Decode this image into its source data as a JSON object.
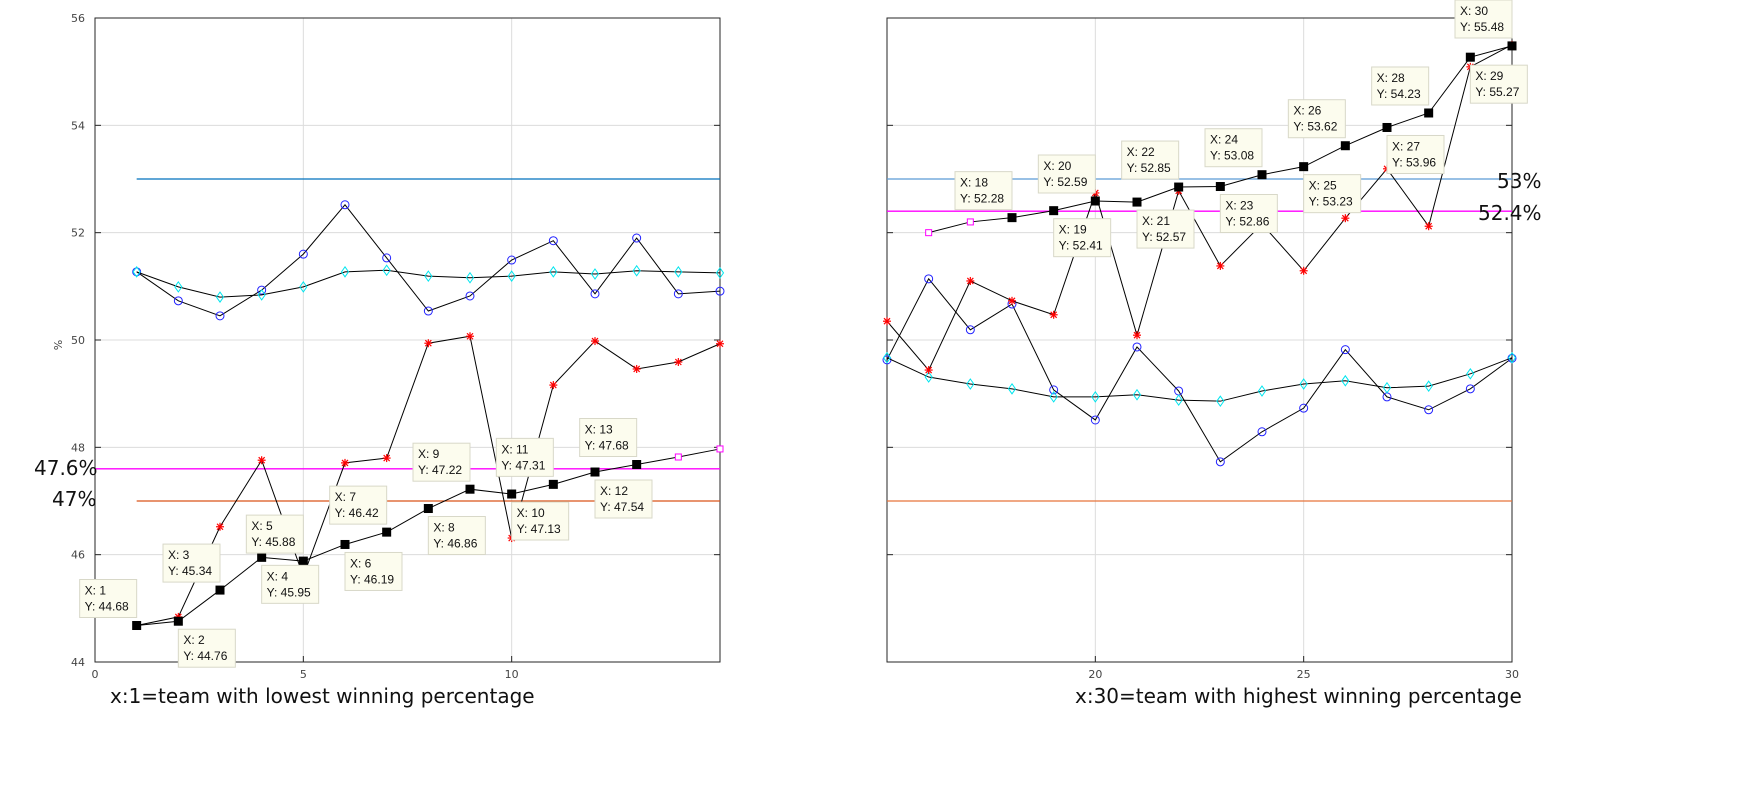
{
  "chart_data": [
    {
      "type": "line",
      "title": "",
      "xlabel": "",
      "ylabel": "%",
      "caption": "x:1=team with lowest winning percentage",
      "xlim": [
        0,
        15
      ],
      "ylim": [
        44,
        56
      ],
      "xticks": [
        0,
        5,
        10
      ],
      "yticks": [
        44,
        46,
        48,
        50,
        52,
        54,
        56
      ],
      "grid": true,
      "annotations": [
        "47.6%",
        "47%"
      ],
      "hlines": [
        {
          "y": 53,
          "from": 1,
          "to": 15,
          "color": "#0072bd"
        },
        {
          "y": 47.6,
          "from": 0,
          "to": 15,
          "color": "#ff00ff"
        },
        {
          "y": 47,
          "from": 1,
          "to": 15,
          "color": "#d95319"
        }
      ],
      "series": [
        {
          "name": "blue-circles",
          "marker": "circle",
          "color": "#2222ff",
          "x": [
            1,
            2,
            3,
            4,
            5,
            6,
            7,
            8,
            9,
            10,
            11,
            12,
            13,
            14,
            15
          ],
          "y": [
            51.27,
            50.73,
            50.45,
            50.93,
            51.6,
            52.52,
            51.53,
            50.54,
            50.82,
            51.49,
            51.85,
            50.86,
            51.9,
            50.86,
            50.91
          ]
        },
        {
          "name": "cyan-diamonds",
          "marker": "diamond",
          "color": "#00e5ee",
          "x": [
            1,
            2,
            3,
            4,
            5,
            6,
            7,
            8,
            9,
            10,
            11,
            12,
            13,
            14,
            15
          ],
          "y": [
            51.27,
            50.99,
            50.8,
            50.84,
            50.99,
            51.27,
            51.3,
            51.19,
            51.16,
            51.19,
            51.27,
            51.23,
            51.29,
            51.27,
            51.25
          ]
        },
        {
          "name": "red-stars",
          "marker": "star",
          "color": "#ff0000",
          "x": [
            1,
            2,
            3,
            4,
            5,
            6,
            7,
            8,
            9,
            10,
            11,
            12,
            13,
            14,
            15
          ],
          "y": [
            44.68,
            44.84,
            46.52,
            47.76,
            45.6,
            47.71,
            47.8,
            49.94,
            50.07,
            46.31,
            49.16,
            49.98,
            49.46,
            49.59,
            49.93
          ]
        },
        {
          "name": "squares",
          "marker": "square",
          "color": "#000000",
          "x": [
            1,
            2,
            3,
            4,
            5,
            6,
            7,
            8,
            9,
            10,
            11,
            12,
            13,
            14,
            15
          ],
          "y": [
            44.68,
            44.76,
            45.34,
            45.95,
            45.88,
            46.19,
            46.42,
            46.86,
            47.22,
            47.13,
            47.31,
            47.54,
            47.68,
            47.82,
            47.97
          ],
          "marker_colors": [
            "#000000",
            "#000000",
            "#000000",
            "#000000",
            "#000000",
            "#000000",
            "#000000",
            "#000000",
            "#000000",
            "#000000",
            "#000000",
            "#000000",
            "#000000",
            "#ff00ff",
            "#ff00ff"
          ]
        }
      ],
      "datatips": [
        {
          "x": 1,
          "label_x": "X: 1",
          "label_y": "Y: 44.68"
        },
        {
          "x": 2,
          "label_x": "X: 2",
          "label_y": "Y: 44.76"
        },
        {
          "x": 3,
          "label_x": "X: 3",
          "label_y": "Y: 45.34"
        },
        {
          "x": 4,
          "label_x": "X: 4",
          "label_y": "Y: 45.95"
        },
        {
          "x": 5,
          "label_x": "X: 5",
          "label_y": "Y: 45.88"
        },
        {
          "x": 6,
          "label_x": "X: 6",
          "label_y": "Y: 46.19"
        },
        {
          "x": 7,
          "label_x": "X: 7",
          "label_y": "Y: 46.42"
        },
        {
          "x": 8,
          "label_x": "X: 8",
          "label_y": "Y: 46.86"
        },
        {
          "x": 9,
          "label_x": "X: 9",
          "label_y": "Y: 47.22"
        },
        {
          "x": 10,
          "label_x": "X: 10",
          "label_y": "Y: 47.13"
        },
        {
          "x": 11,
          "label_x": "X: 11",
          "label_y": "Y: 47.31"
        },
        {
          "x": 12,
          "label_x": "X: 12",
          "label_y": "Y: 47.54"
        },
        {
          "x": 13,
          "label_x": "X: 13",
          "label_y": "Y: 47.68"
        }
      ]
    },
    {
      "type": "line",
      "title": "",
      "xlabel": "",
      "ylabel": "",
      "caption": "x:30=team with highest winning percentage",
      "xlim": [
        15,
        30
      ],
      "ylim": [
        44,
        56
      ],
      "xticks": [
        20,
        25,
        30
      ],
      "yticks": [],
      "grid": true,
      "annotations": [
        "53%",
        "52.4%"
      ],
      "hlines": [
        {
          "y": 53,
          "from": 15,
          "to": 30,
          "color": "#5b9bd5"
        },
        {
          "y": 52.4,
          "from": 15,
          "to": 30,
          "color": "#ff00ff"
        },
        {
          "y": 47,
          "from": 15,
          "to": 30,
          "color": "#e8743b"
        }
      ],
      "series": [
        {
          "name": "blue-circles",
          "marker": "circle",
          "color": "#2222ff",
          "x": [
            15,
            16,
            17,
            18,
            19,
            20,
            21,
            22,
            23,
            24,
            25,
            26,
            27,
            28,
            29,
            30
          ],
          "y": [
            49.63,
            51.14,
            50.19,
            50.67,
            49.07,
            48.51,
            49.87,
            49.05,
            47.73,
            48.29,
            48.73,
            49.82,
            48.94,
            48.7,
            49.09,
            49.66
          ]
        },
        {
          "name": "cyan-diamonds",
          "marker": "diamond",
          "color": "#00e5ee",
          "x": [
            15,
            16,
            17,
            18,
            19,
            20,
            21,
            22,
            23,
            24,
            25,
            26,
            27,
            28,
            29,
            30
          ],
          "y": [
            49.67,
            49.31,
            49.18,
            49.09,
            48.94,
            48.94,
            48.98,
            48.88,
            48.86,
            49.05,
            49.18,
            49.24,
            49.11,
            49.14,
            49.37,
            49.67
          ]
        },
        {
          "name": "red-stars",
          "marker": "star",
          "color": "#ff0000",
          "x": [
            15,
            16,
            17,
            18,
            19,
            20,
            21,
            22,
            23,
            24,
            25,
            26,
            27,
            28,
            29,
            30
          ],
          "y": [
            50.35,
            49.44,
            51.1,
            50.73,
            50.47,
            52.74,
            50.09,
            52.78,
            51.38,
            52.16,
            51.29,
            52.27,
            53.19,
            52.12,
            55.09,
            55.5
          ]
        },
        {
          "name": "squares",
          "marker": "square",
          "color": "#000000",
          "x": [
            16,
            17,
            18,
            19,
            20,
            21,
            22,
            23,
            24,
            25,
            26,
            27,
            28,
            29,
            30
          ],
          "y": [
            52.0,
            52.2,
            52.28,
            52.41,
            52.59,
            52.57,
            52.85,
            52.86,
            53.08,
            53.23,
            53.62,
            53.96,
            54.23,
            55.27,
            55.48
          ],
          "marker_colors": [
            "#ff00ff",
            "#ff00ff",
            "#000000",
            "#000000",
            "#000000",
            "#000000",
            "#000000",
            "#000000",
            "#000000",
            "#000000",
            "#000000",
            "#000000",
            "#000000",
            "#000000",
            "#000000"
          ]
        }
      ],
      "datatips": [
        {
          "x": 18,
          "label_x": "X: 18",
          "label_y": "Y: 52.28"
        },
        {
          "x": 19,
          "label_x": "X: 19",
          "label_y": "Y: 52.41"
        },
        {
          "x": 20,
          "label_x": "X: 20",
          "label_y": "Y: 52.59"
        },
        {
          "x": 21,
          "label_x": "X: 21",
          "label_y": "Y: 52.57"
        },
        {
          "x": 22,
          "label_x": "X: 22",
          "label_y": "Y: 52.85"
        },
        {
          "x": 23,
          "label_x": "X: 23",
          "label_y": "Y: 52.86"
        },
        {
          "x": 24,
          "label_x": "X: 24",
          "label_y": "Y: 53.08"
        },
        {
          "x": 25,
          "label_x": "X: 25",
          "label_y": "Y: 53.23"
        },
        {
          "x": 26,
          "label_x": "X: 26",
          "label_y": "Y: 53.62"
        },
        {
          "x": 27,
          "label_x": "X: 27",
          "label_y": "Y: 53.96"
        },
        {
          "x": 28,
          "label_x": "X: 28",
          "label_y": "Y: 54.23"
        },
        {
          "x": 29,
          "label_x": "X: 29",
          "label_y": "Y: 55.27"
        },
        {
          "x": 30,
          "label_x": "X: 30",
          "label_y": "Y: 55.48"
        }
      ]
    }
  ]
}
